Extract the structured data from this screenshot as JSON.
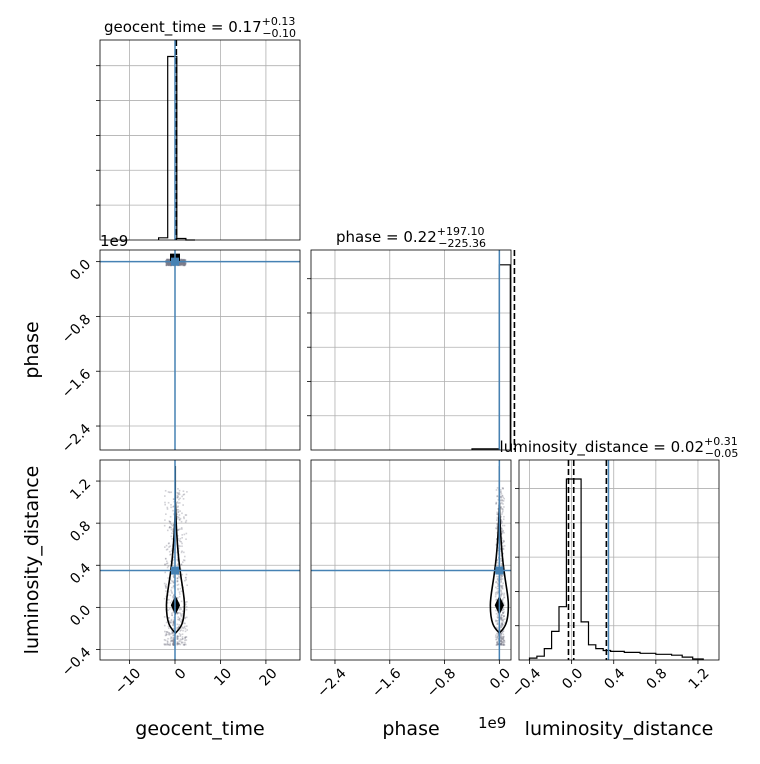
{
  "chart_data": {
    "type": "corner",
    "parameters": [
      "geocent_time",
      "phase",
      "luminosity_distance"
    ],
    "axis_labels": {
      "x": [
        "geocent_time",
        "phase",
        "luminosity_distance"
      ],
      "y_rows": [
        "",
        "phase",
        "luminosity_distance"
      ]
    },
    "titles": [
      {
        "param": "geocent_time",
        "prefix": "geocent_time = 0.17",
        "plus": "+0.13",
        "minus": "−0.10"
      },
      {
        "param": "phase",
        "prefix": "phase = 0.22",
        "plus": "+197.10",
        "minus": "−225.36"
      },
      {
        "param": "luminosity_distance",
        "prefix": "luminosity_distance = 0.02",
        "plus": "+0.31",
        "minus": "−0.05"
      }
    ],
    "offset_labels": [
      "1e9",
      "1e9"
    ],
    "truth_color": "#4682b4",
    "truths": {
      "geocent_time": 0.0,
      "phase": 0.0,
      "luminosity_distance": 0.35
    },
    "quantiles": {
      "geocent_time": [
        0.07,
        0.17,
        0.3
      ],
      "phase": [
        -225.14,
        0.22,
        197.32
      ],
      "luminosity_distance": [
        -0.03,
        0.02,
        0.33
      ]
    },
    "ranges": {
      "geocent_time": [
        -16.5,
        27.5
      ],
      "phase": [
        -2.75,
        0.17
      ],
      "luminosity_distance": [
        -0.5,
        1.4
      ]
    },
    "ticks": {
      "geocent_time": {
        "values": [
          -10,
          0,
          10,
          20
        ],
        "labels": [
          "−10",
          "0",
          "10",
          "20"
        ]
      },
      "phase": {
        "values": [
          -2.4,
          -1.6,
          -0.8,
          0.0
        ],
        "labels": [
          "−2.4",
          "−1.6",
          "−0.8",
          "0.0"
        ]
      },
      "luminosity_distance": {
        "values": [
          -0.4,
          0.0,
          0.4,
          0.8,
          1.2
        ],
        "labels": [
          "−0.4",
          "0.0",
          "0.4",
          "0.8",
          "1.2"
        ]
      }
    },
    "histograms": {
      "geocent_time": {
        "bin_edges": [
          -3.6,
          -1.6,
          0.4,
          2.4,
          4.4
        ],
        "counts": [
          0.012,
          1.0,
          0.008,
          0.0
        ],
        "ylim": [
          0,
          1.09
        ],
        "ytick_values": [
          0.19,
          0.38,
          0.57,
          0.76,
          0.95
        ]
      },
      "phase": {
        "bin_edges": [
          -0.4,
          0.0,
          0.16
        ],
        "counts": [
          0.006,
          1.0
        ],
        "ylim": [
          0,
          1.08
        ],
        "ytick_values": [
          0.185,
          0.37,
          0.555,
          0.74,
          0.925
        ]
      },
      "luminosity_distance": {
        "bin_edges": [
          -0.4,
          -0.33,
          -0.26,
          -0.19,
          -0.12,
          -0.05,
          0.02,
          0.09,
          0.16,
          0.23,
          0.3,
          0.37,
          0.5,
          0.65,
          0.8,
          0.95,
          1.05,
          1.15,
          1.25
        ],
        "counts": [
          0.01,
          0.02,
          0.06,
          0.15,
          0.28,
          0.95,
          0.95,
          0.2,
          0.08,
          0.06,
          0.05,
          0.045,
          0.04,
          0.035,
          0.03,
          0.025,
          0.015,
          0.005
        ],
        "ylim": [
          0,
          1.05
        ],
        "ytick_values": [
          0.18,
          0.36,
          0.54,
          0.72,
          0.9
        ]
      }
    },
    "contours": [
      {
        "xparam": "geocent_time",
        "yparam": "luminosity_distance",
        "center": [
          0.1,
          0.02
        ],
        "half_width_inner": 0.6,
        "half_width_outer": 1.8,
        "y_span_inner": [
          -0.06,
          0.1
        ],
        "y_span_outer": [
          -0.15,
          0.19
        ],
        "tail_top": 1.0
      },
      {
        "xparam": "phase",
        "yparam": "luminosity_distance",
        "center": [
          0.0,
          0.02
        ],
        "half_width_inner": 0.03,
        "half_width_outer": 0.09,
        "y_span_inner": [
          -0.06,
          0.1
        ],
        "y_span_outer": [
          -0.15,
          0.19
        ],
        "tail_top": 1.0
      }
    ],
    "grid": true
  }
}
